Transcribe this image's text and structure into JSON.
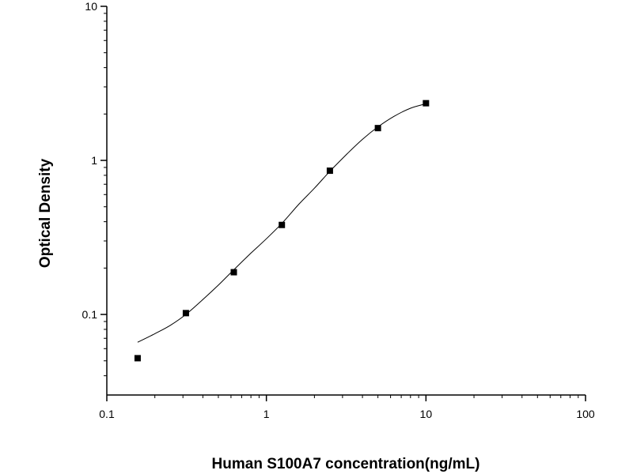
{
  "chart_data": {
    "type": "scatter",
    "xlabel": "Human S100A7 concentration(ng/mL)",
    "ylabel": "Optical Density",
    "x_scale": "log",
    "y_scale": "log",
    "xlim": [
      0.1,
      100
    ],
    "ylim": [
      0.03,
      10
    ],
    "x_ticks": [
      {
        "value": 0.1,
        "label": "0.1"
      },
      {
        "value": 1,
        "label": "1"
      },
      {
        "value": 10,
        "label": "10"
      },
      {
        "value": 100,
        "label": "100"
      }
    ],
    "y_ticks": [
      {
        "value": 0.1,
        "label": "0.1"
      },
      {
        "value": 1,
        "label": "1"
      },
      {
        "value": 10,
        "label": "10"
      }
    ],
    "grid": false,
    "legend": "none",
    "series": [
      {
        "points": [
          {
            "x": 0.156,
            "y": 0.052
          },
          {
            "x": 0.313,
            "y": 0.102
          },
          {
            "x": 0.625,
            "y": 0.188
          },
          {
            "x": 1.25,
            "y": 0.381
          },
          {
            "x": 2.5,
            "y": 0.857
          },
          {
            "x": 5,
            "y": 1.62
          },
          {
            "x": 10,
            "y": 2.35
          }
        ],
        "marker": "square",
        "color": "#000000"
      }
    ],
    "fit_curve": {
      "color": "#000000",
      "points": [
        {
          "x": 0.156,
          "y": 0.066
        },
        {
          "x": 0.2,
          "y": 0.075
        },
        {
          "x": 0.25,
          "y": 0.085
        },
        {
          "x": 0.313,
          "y": 0.1
        },
        {
          "x": 0.4,
          "y": 0.125
        },
        {
          "x": 0.5,
          "y": 0.155
        },
        {
          "x": 0.625,
          "y": 0.195
        },
        {
          "x": 0.8,
          "y": 0.25
        },
        {
          "x": 1.0,
          "y": 0.31
        },
        {
          "x": 1.25,
          "y": 0.39
        },
        {
          "x": 1.6,
          "y": 0.52
        },
        {
          "x": 2.0,
          "y": 0.66
        },
        {
          "x": 2.5,
          "y": 0.85
        },
        {
          "x": 3.2,
          "y": 1.1
        },
        {
          "x": 4.0,
          "y": 1.37
        },
        {
          "x": 5.0,
          "y": 1.65
        },
        {
          "x": 6.3,
          "y": 1.93
        },
        {
          "x": 8.0,
          "y": 2.18
        },
        {
          "x": 10.0,
          "y": 2.33
        }
      ]
    }
  }
}
